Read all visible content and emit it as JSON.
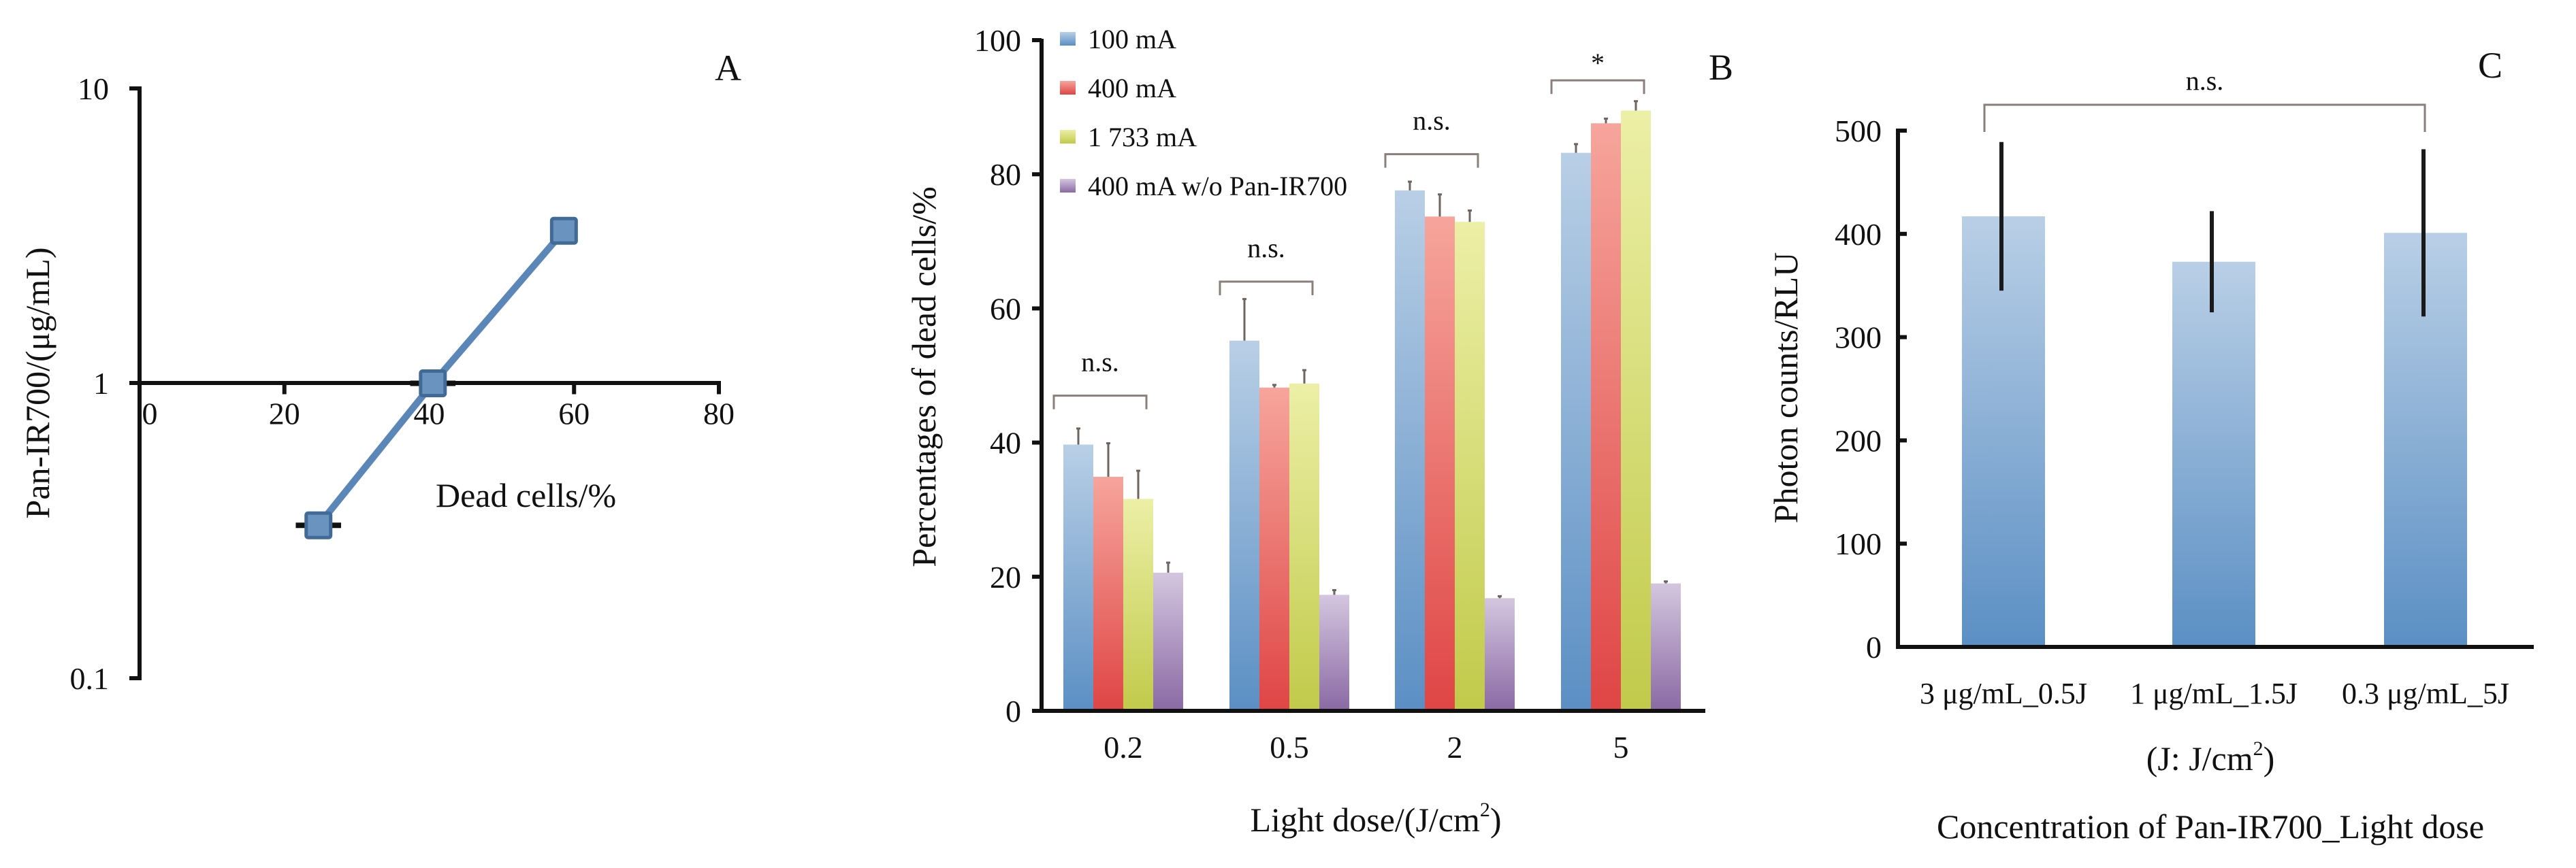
{
  "figure": {
    "panels": [
      "A",
      "B",
      "C"
    ]
  },
  "chart_data": [
    {
      "panel": "A",
      "type": "line",
      "title": "",
      "panel_label": "A",
      "xlabel": "Dead cells/%",
      "ylabel": "Pan-IR700/(μg/mL)",
      "x_ticks": [
        "0",
        "20",
        "40",
        "60",
        "80"
      ],
      "y_ticks": [
        "10",
        "1",
        "0.1"
      ],
      "xlim": [
        0,
        80
      ],
      "ylim": [
        0.1,
        10
      ],
      "y_scale": "log",
      "x_axis_crosses_y_at": 1,
      "grid": false,
      "series": [
        {
          "name": "Pan-IR700",
          "color": "#5b87b8",
          "marker": "square",
          "x": [
            24.7,
            40.5,
            58.6
          ],
          "y": [
            0.33,
            1.0,
            3.29
          ],
          "x_err": [
            2,
            2,
            0
          ]
        }
      ]
    },
    {
      "panel": "B",
      "type": "bar",
      "title": "",
      "panel_label": "B",
      "xlabel": "Light dose/(J/cm",
      "xlabel_sup": "2",
      "xlabel_close": ")",
      "ylabel": "Percentages of dead cells/%",
      "categories": [
        "0.2",
        "0.5",
        "2",
        "5"
      ],
      "y_ticks": [
        "0",
        "20",
        "40",
        "60",
        "80",
        "100"
      ],
      "ylim": [
        0,
        100
      ],
      "grid": false,
      "legend_position": "top-left",
      "series": [
        {
          "name": "100 mA",
          "color": "#5b8fc4",
          "color_light": "#b7cde5",
          "values": [
            39.7,
            55.2,
            77.6,
            83.2
          ],
          "errors": [
            2.4,
            6.2,
            1.3,
            1.3
          ]
        },
        {
          "name": "400 mA",
          "color": "#e04a4a",
          "color_light": "#f5a39a",
          "values": [
            34.9,
            48.2,
            73.7,
            87.6
          ],
          "errors": [
            5.0,
            0.4,
            3.3,
            0.7
          ]
        },
        {
          "name": "1 733 mA",
          "color": "#c3cc4c",
          "color_light": "#eaeda4",
          "values": [
            31.6,
            48.8,
            72.9,
            89.5
          ],
          "errors": [
            4.2,
            2.0,
            1.7,
            1.4
          ]
        },
        {
          "name": "400 mA w/o Pan-IR700",
          "color": "#8b6ba5",
          "color_light": "#d2c3dd",
          "values": [
            20.6,
            17.3,
            16.8,
            19.0
          ],
          "errors": [
            1.5,
            0.7,
            0.3,
            0.3
          ]
        }
      ],
      "annotations": [
        {
          "text": "n.s.",
          "group": 0,
          "from_series": 0,
          "to_series": 2,
          "bracket_y": 47
        },
        {
          "text": "n.s.",
          "group": 1,
          "from_series": 0,
          "to_series": 2,
          "bracket_y": 64
        },
        {
          "text": "n.s.",
          "group": 2,
          "from_series": 0,
          "to_series": 2,
          "bracket_y": 83
        },
        {
          "text": "*",
          "group": 3,
          "from_series": 0,
          "to_series": 2,
          "bracket_y": 94
        }
      ]
    },
    {
      "panel": "C",
      "type": "bar",
      "title": "",
      "panel_label": "C",
      "xlabel": "Concentration of Pan-IR700_Light dose",
      "xlabel_unit_note": "(J: J/cm",
      "xlabel_unit_sup": "2",
      "xlabel_unit_close": ")",
      "ylabel": "Photon counts/RLU",
      "categories": [
        "3 μg/mL_0.5J",
        "1 μg/mL_1.5J",
        "0.3 μg/mL_5J"
      ],
      "y_ticks": [
        "0",
        "100",
        "200",
        "300",
        "400",
        "500"
      ],
      "ylim": [
        0,
        500
      ],
      "grid": false,
      "series": [
        {
          "name": "Photon counts",
          "color": "#5b8fc4",
          "color_light": "#b7cde5",
          "values": [
            417,
            373,
            401
          ],
          "errors": [
            72,
            49,
            81
          ]
        }
      ],
      "annotations": [
        {
          "text": "n.s.",
          "from_category": 0,
          "to_category": 2,
          "bracket_y": 526
        }
      ]
    }
  ]
}
